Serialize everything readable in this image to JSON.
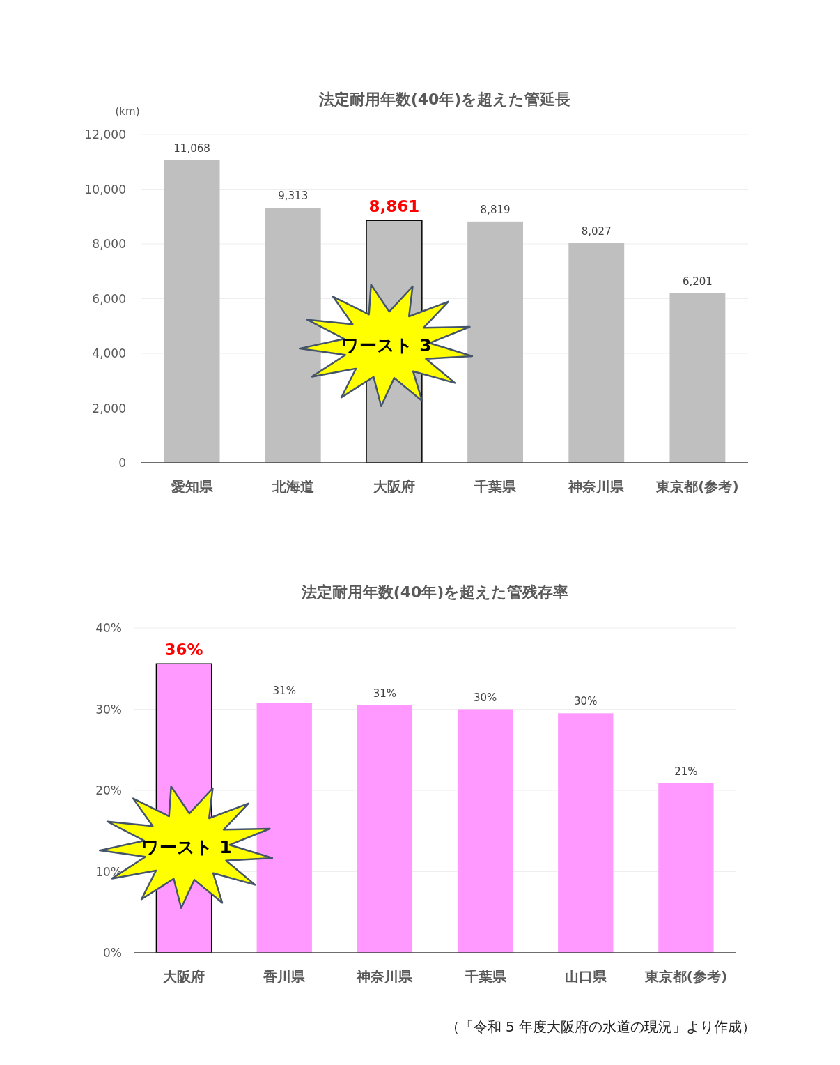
{
  "chart_data": [
    {
      "type": "bar",
      "title": "法定耐用年数(40年)を超えた管延長",
      "ylabel": "(km)",
      "categories": [
        "愛知県",
        "北海道",
        "大阪府",
        "千葉県",
        "神奈川県",
        "東京都(参考)"
      ],
      "values": [
        11068,
        9313,
        8861,
        8819,
        8027,
        6201
      ],
      "value_labels": [
        "11,068",
        "9,313",
        null,
        "8,819",
        "8,027",
        "6,201"
      ],
      "color": "#bfbfbf",
      "ylim": [
        0,
        12000
      ],
      "yticks": [
        {
          "value": 0,
          "label": "0"
        },
        {
          "value": 2000,
          "label": "2,000"
        },
        {
          "value": 4000,
          "label": "4,000"
        },
        {
          "value": 6000,
          "label": "6,000"
        },
        {
          "value": 8000,
          "label": "8,000"
        },
        {
          "value": 10000,
          "label": "10,000"
        },
        {
          "value": 12000,
          "label": "12,000"
        }
      ],
      "grid": "y",
      "annotations": [
        {
          "text": "8,861",
          "x": "大阪府",
          "y": 8861
        },
        "ワースト 3"
      ]
    },
    {
      "type": "bar",
      "title": "法定耐用年数(40年)を超えた管残存率",
      "categories": [
        "大阪府",
        "香川県",
        "神奈川県",
        "千葉県",
        "山口県",
        "東京都(参考)"
      ],
      "values": [
        35.6,
        30.8,
        30.5,
        30.0,
        29.5,
        20.9
      ],
      "value_labels": [
        null,
        "31%",
        "31%",
        "30%",
        "30%",
        "21%"
      ],
      "color": "#ff99ff",
      "ylim": [
        0,
        40
      ],
      "yticks": [
        {
          "value": 0,
          "label": "0%"
        },
        {
          "value": 10,
          "label": "10%"
        },
        {
          "value": 20,
          "label": "20%"
        },
        {
          "value": 30,
          "label": "30%"
        },
        {
          "value": 40,
          "label": "40%"
        }
      ],
      "grid": "y",
      "annotations": [
        {
          "text": "36%",
          "x": "大阪府",
          "y": 35.6
        },
        "ワースト 1",
        "（「令和 5 年度大阪府の水道の現況」より作成）"
      ]
    }
  ]
}
